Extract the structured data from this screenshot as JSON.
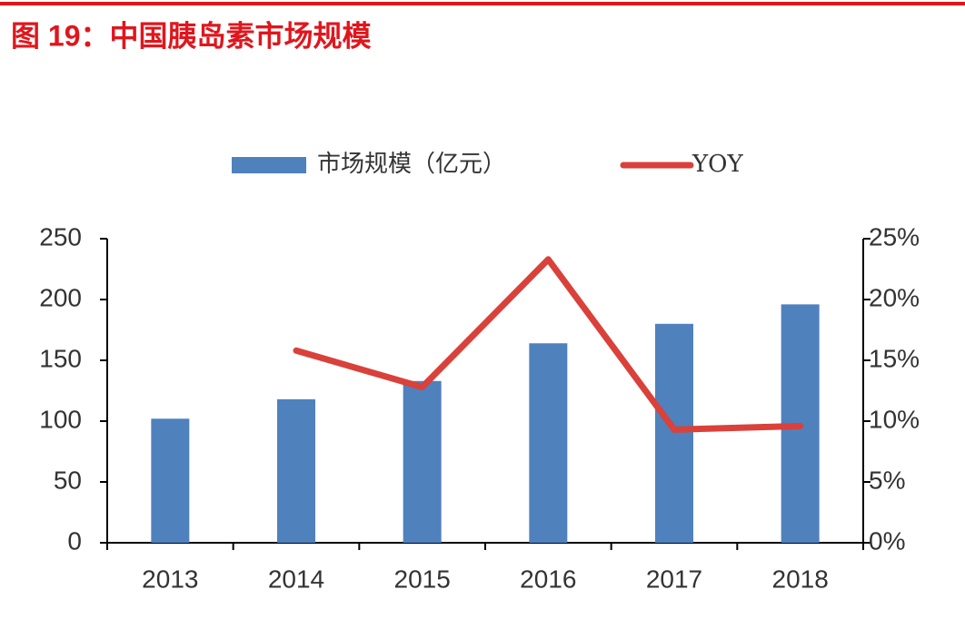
{
  "chart_data": {
    "type": "bar-line",
    "title": "图 19：中国胰岛素市场规模",
    "categories": [
      "2013",
      "2014",
      "2015",
      "2016",
      "2017",
      "2018"
    ],
    "series": [
      {
        "name": "市场规模（亿元）",
        "type": "bar",
        "color": "#4f81bd",
        "values": [
          102,
          118,
          133,
          164,
          180,
          196
        ]
      },
      {
        "name": "YOY",
        "type": "line",
        "axis": "y2",
        "color": "#d9413a",
        "values": [
          null,
          15.8,
          12.8,
          23.3,
          9.3,
          9.6
        ]
      }
    ],
    "ylim": [
      0,
      250
    ],
    "yticks": [
      0,
      50,
      100,
      150,
      200,
      250
    ],
    "y2lim": [
      0,
      25
    ],
    "y2ticks": [
      {
        "value": 0,
        "label": "0%"
      },
      {
        "value": 5,
        "label": "5%"
      },
      {
        "value": 10,
        "label": "10%"
      },
      {
        "value": 15,
        "label": "15%"
      },
      {
        "value": 20,
        "label": "20%"
      },
      {
        "value": 25,
        "label": "25%"
      }
    ],
    "grid": false,
    "legend": "top"
  }
}
